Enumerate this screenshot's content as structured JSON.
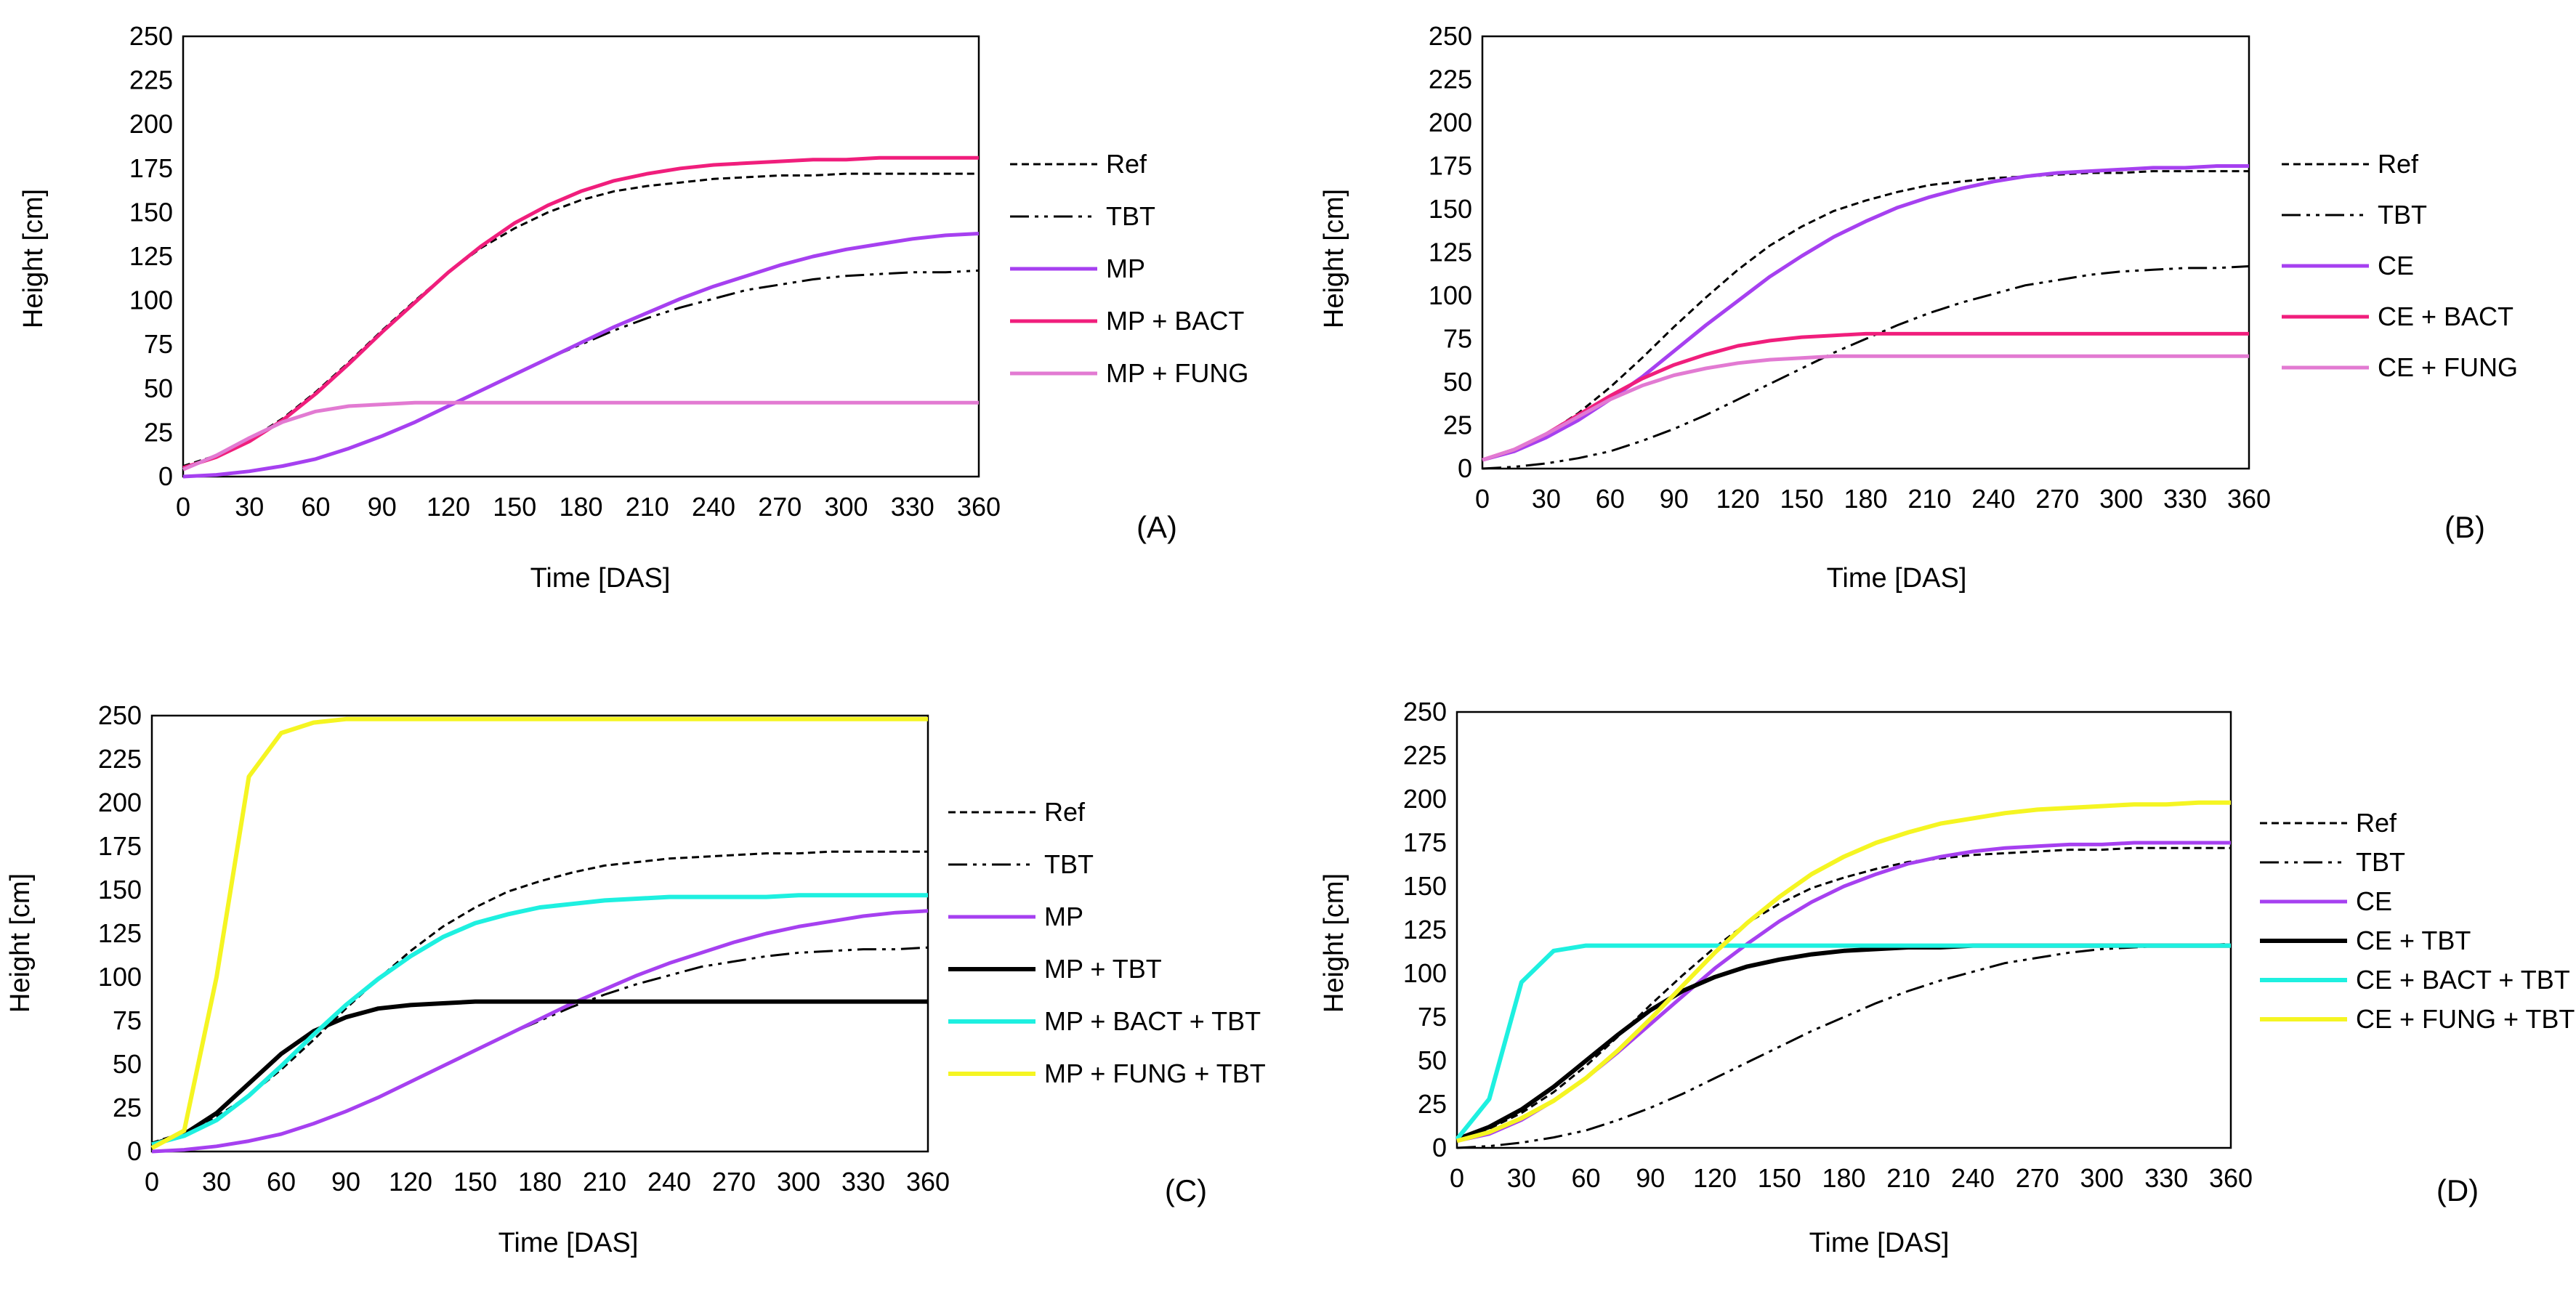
{
  "styles": {
    "Ref": {
      "color": "#000000",
      "dash": "10 6",
      "width": 3
    },
    "TBT": {
      "color": "#000000",
      "dash": "26 8 5 8 5 8",
      "width": 3
    },
    "MP": {
      "color": "#A640F0",
      "dash": "",
      "width": 5
    },
    "CE": {
      "color": "#A640F0",
      "dash": "",
      "width": 5
    },
    "MP + BACT": {
      "color": "#F01E7C",
      "dash": "",
      "width": 5
    },
    "CE + BACT": {
      "color": "#F01E7C",
      "dash": "",
      "width": 5
    },
    "MP + FUNG": {
      "color": "#E27AD2",
      "dash": "",
      "width": 5
    },
    "CE + FUNG": {
      "color": "#E27AD2",
      "dash": "",
      "width": 5
    },
    "MP + TBT": {
      "color": "#000000",
      "dash": "",
      "width": 6
    },
    "CE + TBT": {
      "color": "#000000",
      "dash": "",
      "width": 6
    },
    "MP + BACT + TBT": {
      "color": "#1EF0E0",
      "dash": "",
      "width": 6
    },
    "CE + BACT + TBT": {
      "color": "#1EF0E0",
      "dash": "",
      "width": 6
    },
    "MP + FUNG + TBT": {
      "color": "#F5F522",
      "dash": "",
      "width": 6
    },
    "CE + FUNG + TBT": {
      "color": "#F5F522",
      "dash": "",
      "width": 6
    }
  },
  "chart_data": [
    {
      "type": "line",
      "panel_label": "(A)",
      "xlabel": "Time [DAS]",
      "ylabel": "Height [cm]",
      "xlim": [
        0,
        360
      ],
      "ylim": [
        0,
        250
      ],
      "xticks": [
        0,
        30,
        60,
        90,
        120,
        150,
        180,
        210,
        240,
        270,
        300,
        330,
        360
      ],
      "yticks": [
        0,
        25,
        50,
        75,
        100,
        125,
        150,
        175,
        200,
        225,
        250
      ],
      "x": [
        0,
        15,
        30,
        45,
        60,
        75,
        90,
        105,
        120,
        135,
        150,
        165,
        180,
        195,
        210,
        225,
        240,
        255,
        270,
        285,
        300,
        315,
        330,
        345,
        360
      ],
      "series": [
        {
          "name": "Ref",
          "values": [
            6,
            12,
            21,
            33,
            48,
            65,
            83,
            100,
            116,
            130,
            141,
            150,
            157,
            162,
            165,
            167,
            169,
            170,
            171,
            171,
            172,
            172,
            172,
            172,
            172
          ]
        },
        {
          "name": "TBT",
          "values": [
            0,
            1,
            3,
            6,
            10,
            16,
            23,
            31,
            40,
            49,
            58,
            67,
            75,
            83,
            90,
            96,
            101,
            106,
            109,
            112,
            114,
            115,
            116,
            116,
            117
          ]
        },
        {
          "name": "MP",
          "values": [
            0,
            1,
            3,
            6,
            10,
            16,
            23,
            31,
            40,
            49,
            58,
            67,
            76,
            85,
            93,
            101,
            108,
            114,
            120,
            125,
            129,
            132,
            135,
            137,
            138
          ]
        },
        {
          "name": "MP + BACT",
          "values": [
            5,
            11,
            20,
            32,
            47,
            64,
            82,
            99,
            116,
            131,
            144,
            154,
            162,
            168,
            172,
            175,
            177,
            178,
            179,
            180,
            180,
            181,
            181,
            181,
            181
          ]
        },
        {
          "name": "MP + FUNG",
          "values": [
            4,
            12,
            22,
            31,
            37,
            40,
            41,
            42,
            42,
            42,
            42,
            42,
            42,
            42,
            42,
            42,
            42,
            42,
            42,
            42,
            42,
            42,
            42,
            42,
            42
          ]
        }
      ]
    },
    {
      "type": "line",
      "panel_label": "(B)",
      "xlabel": "Time [DAS]",
      "ylabel": "Height [cm]",
      "xlim": [
        0,
        360
      ],
      "ylim": [
        0,
        250
      ],
      "xticks": [
        0,
        30,
        60,
        90,
        120,
        150,
        180,
        210,
        240,
        270,
        300,
        330,
        360
      ],
      "yticks": [
        0,
        25,
        50,
        75,
        100,
        125,
        150,
        175,
        200,
        225,
        250
      ],
      "x": [
        0,
        15,
        30,
        45,
        60,
        75,
        90,
        105,
        120,
        135,
        150,
        165,
        180,
        195,
        210,
        225,
        240,
        255,
        270,
        285,
        300,
        315,
        330,
        345,
        360
      ],
      "series": [
        {
          "name": "Ref",
          "values": [
            5,
            11,
            20,
            32,
            47,
            64,
            82,
            99,
            115,
            129,
            140,
            149,
            155,
            160,
            164,
            166,
            168,
            169,
            170,
            171,
            171,
            172,
            172,
            172,
            172
          ]
        },
        {
          "name": "TBT",
          "values": [
            0,
            1,
            3,
            6,
            10,
            16,
            23,
            31,
            40,
            49,
            58,
            67,
            75,
            83,
            90,
            96,
            101,
            106,
            109,
            112,
            114,
            115,
            116,
            116,
            117
          ]
        },
        {
          "name": "CE",
          "values": [
            5,
            10,
            18,
            28,
            40,
            53,
            68,
            83,
            97,
            111,
            123,
            134,
            143,
            151,
            157,
            162,
            166,
            169,
            171,
            172,
            173,
            174,
            174,
            175,
            175
          ]
        },
        {
          "name": "CE + BACT",
          "values": [
            5,
            11,
            20,
            31,
            42,
            52,
            60,
            66,
            71,
            74,
            76,
            77,
            78,
            78,
            78,
            78,
            78,
            78,
            78,
            78,
            78,
            78,
            78,
            78,
            78
          ]
        },
        {
          "name": "CE + FUNG",
          "values": [
            5,
            11,
            20,
            30,
            40,
            48,
            54,
            58,
            61,
            63,
            64,
            65,
            65,
            65,
            65,
            65,
            65,
            65,
            65,
            65,
            65,
            65,
            65,
            65,
            65
          ]
        }
      ]
    },
    {
      "type": "line",
      "panel_label": "(C)",
      "xlabel": "Time [DAS]",
      "ylabel": "Height [cm]",
      "xlim": [
        0,
        360
      ],
      "ylim": [
        0,
        250
      ],
      "xticks": [
        0,
        30,
        60,
        90,
        120,
        150,
        180,
        210,
        240,
        270,
        300,
        330,
        360
      ],
      "yticks": [
        0,
        25,
        50,
        75,
        100,
        125,
        150,
        175,
        200,
        225,
        250
      ],
      "x": [
        0,
        15,
        30,
        45,
        60,
        75,
        90,
        105,
        120,
        135,
        150,
        165,
        180,
        195,
        210,
        225,
        240,
        255,
        270,
        285,
        300,
        315,
        330,
        345,
        360
      ],
      "series": [
        {
          "name": "Ref",
          "values": [
            5,
            11,
            20,
            32,
            47,
            64,
            82,
            99,
            115,
            129,
            140,
            149,
            155,
            160,
            164,
            166,
            168,
            169,
            170,
            171,
            171,
            172,
            172,
            172,
            172
          ]
        },
        {
          "name": "TBT",
          "values": [
            0,
            1,
            3,
            6,
            10,
            16,
            23,
            31,
            40,
            49,
            58,
            67,
            75,
            83,
            90,
            96,
            101,
            106,
            109,
            112,
            114,
            115,
            116,
            116,
            117
          ]
        },
        {
          "name": "MP",
          "values": [
            0,
            1,
            3,
            6,
            10,
            16,
            23,
            31,
            40,
            49,
            58,
            67,
            76,
            85,
            93,
            101,
            108,
            114,
            120,
            125,
            129,
            132,
            135,
            137,
            138
          ]
        },
        {
          "name": "MP + TBT",
          "values": [
            4,
            10,
            22,
            39,
            56,
            69,
            77,
            82,
            84,
            85,
            86,
            86,
            86,
            86,
            86,
            86,
            86,
            86,
            86,
            86,
            86,
            86,
            86,
            86,
            86
          ]
        },
        {
          "name": "MP + BACT + TBT",
          "values": [
            4,
            9,
            18,
            32,
            49,
            67,
            84,
            99,
            112,
            123,
            131,
            136,
            140,
            142,
            144,
            145,
            146,
            146,
            146,
            146,
            147,
            147,
            147,
            147,
            147
          ]
        },
        {
          "name": "MP + FUNG + TBT",
          "values": [
            2,
            12,
            100,
            215,
            240,
            246,
            248,
            248,
            248,
            248,
            248,
            248,
            248,
            248,
            248,
            248,
            248,
            248,
            248,
            248,
            248,
            248,
            248,
            248,
            248
          ]
        }
      ]
    },
    {
      "type": "line",
      "panel_label": "(D)",
      "xlabel": "Time [DAS]",
      "ylabel": "Height [cm]",
      "xlim": [
        0,
        360
      ],
      "ylim": [
        0,
        250
      ],
      "xticks": [
        0,
        30,
        60,
        90,
        120,
        150,
        180,
        210,
        240,
        270,
        300,
        330,
        360
      ],
      "yticks": [
        0,
        25,
        50,
        75,
        100,
        125,
        150,
        175,
        200,
        225,
        250
      ],
      "x": [
        0,
        15,
        30,
        45,
        60,
        75,
        90,
        105,
        120,
        135,
        150,
        165,
        180,
        195,
        210,
        225,
        240,
        255,
        270,
        285,
        300,
        315,
        330,
        345,
        360
      ],
      "series": [
        {
          "name": "Ref",
          "values": [
            5,
            11,
            20,
            32,
            47,
            64,
            82,
            99,
            115,
            129,
            140,
            149,
            155,
            160,
            164,
            166,
            168,
            169,
            170,
            171,
            171,
            172,
            172,
            172,
            172
          ]
        },
        {
          "name": "TBT",
          "values": [
            0,
            1,
            3,
            6,
            10,
            16,
            23,
            31,
            40,
            49,
            58,
            67,
            75,
            83,
            90,
            96,
            101,
            106,
            109,
            112,
            114,
            115,
            116,
            116,
            117
          ]
        },
        {
          "name": "CE",
          "values": [
            4,
            8,
            16,
            27,
            40,
            55,
            71,
            87,
            103,
            117,
            130,
            141,
            150,
            157,
            163,
            167,
            170,
            172,
            173,
            174,
            174,
            175,
            175,
            175,
            175
          ]
        },
        {
          "name": "CE + TBT",
          "values": [
            5,
            12,
            22,
            35,
            50,
            65,
            79,
            90,
            98,
            104,
            108,
            111,
            113,
            114,
            115,
            115,
            116,
            116,
            116,
            116,
            116,
            116,
            116,
            116,
            116
          ]
        },
        {
          "name": "CE + BACT + TBT",
          "values": [
            5,
            28,
            95,
            113,
            116,
            116,
            116,
            116,
            116,
            116,
            116,
            116,
            116,
            116,
            116,
            116,
            116,
            116,
            116,
            116,
            116,
            116,
            116,
            116,
            116
          ]
        },
        {
          "name": "CE + FUNG + TBT",
          "values": [
            4,
            9,
            17,
            27,
            40,
            56,
            74,
            93,
            112,
            129,
            144,
            157,
            167,
            175,
            181,
            186,
            189,
            192,
            194,
            195,
            196,
            197,
            197,
            198,
            198
          ]
        }
      ]
    }
  ]
}
